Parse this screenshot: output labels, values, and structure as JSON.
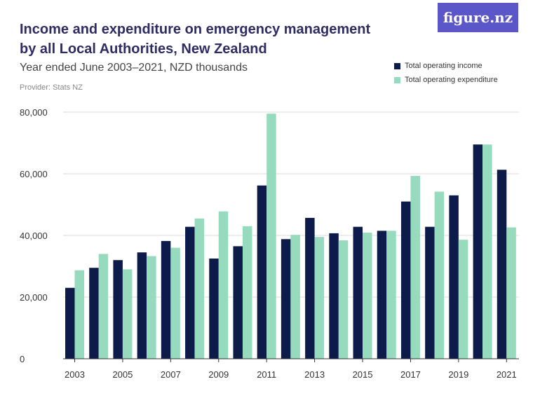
{
  "header": {
    "title": "Income and expenditure on emergency management by all Local Authorities, New Zealand",
    "subtitle": "Year ended June 2003–2021, NZD thousands",
    "provider": "Provider: Stats NZ",
    "logo_text": "figure.nz"
  },
  "colors": {
    "income": "#0d1b4a",
    "expenditure": "#97dbbe",
    "logo_bg": "#5b57c8"
  },
  "chart_data": {
    "type": "bar",
    "title": "Income and expenditure on emergency management by all Local Authorities, New Zealand",
    "subtitle": "Year ended June 2003–2021, NZD thousands",
    "xlabel": "",
    "ylabel": "",
    "ylim": [
      0,
      80000
    ],
    "yticks": [
      0,
      20000,
      40000,
      60000,
      80000
    ],
    "ytick_labels": [
      "0",
      "20,000",
      "40,000",
      "60,000",
      "80,000"
    ],
    "categories": [
      "2003",
      "2004",
      "2005",
      "2006",
      "2007",
      "2008",
      "2009",
      "2010",
      "2011",
      "2012",
      "2013",
      "2014",
      "2015",
      "2016",
      "2017",
      "2018",
      "2019",
      "2020",
      "2021"
    ],
    "xtick_labels": [
      "2003",
      "2005",
      "2007",
      "2009",
      "2011",
      "2013",
      "2015",
      "2017",
      "2019",
      "2021"
    ],
    "legend_position": "top-right",
    "series": [
      {
        "name": "Total operating income",
        "values": [
          23000,
          29500,
          32000,
          34500,
          38200,
          42800,
          32500,
          36500,
          56200,
          38800,
          45700,
          40700,
          42800,
          41500,
          51000,
          42800,
          53000,
          69500,
          61300
        ]
      },
      {
        "name": "Total operating expenditure",
        "values": [
          28700,
          34000,
          29000,
          33300,
          36000,
          45500,
          47800,
          43000,
          79500,
          40200,
          39500,
          38400,
          40900,
          41500,
          59300,
          54200,
          38600,
          69500,
          42600
        ]
      }
    ]
  }
}
